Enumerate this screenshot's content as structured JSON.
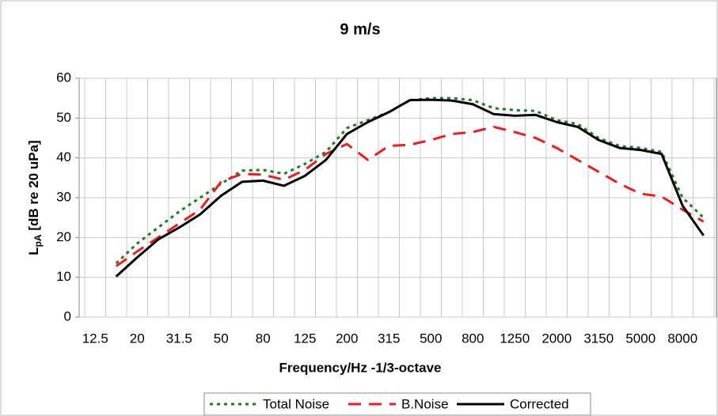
{
  "chart_data": {
    "type": "line",
    "title": "9 m/s",
    "x_label": "Frequency/Hz -1/3-octave",
    "y_label": {
      "main": "L",
      "sub": "pA",
      "rest": " [dB re 20 uPa]"
    },
    "categories": [
      "12.5",
      null,
      "20",
      null,
      "31.5",
      null,
      "50",
      null,
      "80",
      null,
      "125",
      null,
      "200",
      null,
      "315",
      null,
      "500",
      null,
      "800",
      null,
      "1250",
      null,
      "2000",
      null,
      "3150",
      null,
      "5000",
      null,
      "8000",
      null
    ],
    "ylim": [
      0,
      60
    ],
    "yticks": [
      0,
      10,
      20,
      30,
      40,
      50,
      60
    ],
    "grid": true,
    "legend": "bottom",
    "series": [
      {
        "name": "Total Noise",
        "color": "#1a7f1a",
        "dash": "4,5",
        "values": [
          null,
          13.5,
          18.5,
          22.5,
          26.5,
          30,
          33.5,
          36.8,
          37,
          36,
          38.5,
          41.5,
          47.5,
          49.5,
          51.5,
          54.5,
          55,
          55,
          54.5,
          52.5,
          52,
          51.8,
          49.5,
          48.5,
          45,
          43,
          42.5,
          41.5,
          30,
          25
        ]
      },
      {
        "name": "B.Noise",
        "color": "#ee1c1c",
        "dash": "16,10",
        "values": [
          null,
          12.8,
          16.5,
          20,
          23.5,
          27,
          34,
          36,
          35.8,
          34.5,
          37,
          41,
          43.5,
          39.5,
          43,
          43.3,
          44.5,
          46,
          46.5,
          47.8,
          46.5,
          45,
          42.5,
          39.5,
          36.5,
          33.5,
          31,
          30.3,
          27,
          24
        ]
      },
      {
        "name": "Corrected",
        "color": "#000000",
        "dash": "none",
        "values": [
          null,
          10.2,
          15,
          19.5,
          22.5,
          25.8,
          30.5,
          34,
          34.3,
          33,
          35.5,
          39.5,
          46,
          49,
          51.5,
          54.5,
          54.6,
          54.4,
          53.5,
          51,
          50.6,
          50.8,
          49,
          47.8,
          44.5,
          42.5,
          42,
          41,
          28,
          20.5
        ]
      }
    ]
  }
}
